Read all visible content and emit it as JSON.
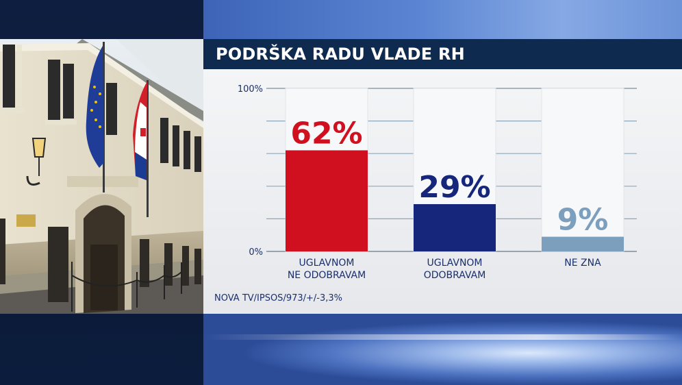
{
  "title": "PODRŠKA RADU VLADE RH",
  "source": "NOVA TV/IPSOS/973/+/-3,3%",
  "colors": {
    "red": "#d0101e",
    "navy": "#16267a",
    "steel": "#7b9fbd",
    "title_bg": "#0f2a4f",
    "label_text": "#1a2f6a"
  },
  "chart_data": {
    "type": "bar",
    "title": "PODRŠKA RADU VLADE RH",
    "categories": [
      [
        "UGLAVNOM",
        "NE ODOBRAVAM"
      ],
      [
        "UGLAVNOM",
        "ODOBRAVAM"
      ],
      [
        "NE ZNA"
      ]
    ],
    "values": [
      62,
      29,
      9
    ],
    "value_labels": [
      "62%",
      "29%",
      "9%"
    ],
    "bar_colors": [
      "#d0101e",
      "#16267a",
      "#7b9fbd"
    ],
    "ylim": [
      0,
      100
    ],
    "yticks": [
      {
        "value": 0,
        "label": "0%"
      },
      {
        "value": 100,
        "label": "100%"
      }
    ],
    "grid": true
  }
}
